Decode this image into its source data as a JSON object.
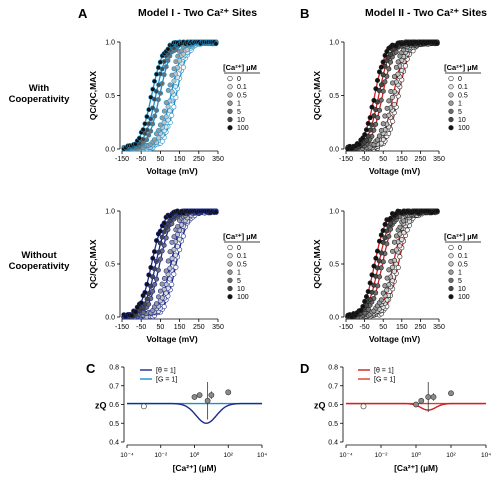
{
  "panel_letters": {
    "a": "A",
    "b": "B",
    "c": "C",
    "d": "D"
  },
  "model_titles": {
    "model1": "Model I - Two Ca²⁺ Sites",
    "model2": "Model II - Two Ca²⁺ Sites"
  },
  "row_labels": {
    "with": [
      "With",
      "Cooperativity"
    ],
    "without": [
      "Without",
      "Cooperativity"
    ]
  },
  "colors": {
    "model1_with": "#1f8fc9",
    "model1_without": "#1c2a8a",
    "model2": "#d02020",
    "model2_bottom": "#e23a2a",
    "data_dark": "#222222"
  },
  "chart_data": [
    {
      "id": "A-top",
      "type": "scatter",
      "xlabel": "Voltage (mV)",
      "ylabel": "QC/QC,MAX",
      "xlim": [
        -150,
        350
      ],
      "ylim": [
        0,
        1.0
      ],
      "xticks": [
        "-150",
        "-50",
        "50",
        "150",
        "250",
        "350"
      ],
      "yticks": [
        "0.0",
        "0.5",
        "1.0"
      ],
      "legend_title": "[Ca²⁺] µM",
      "legend": [
        "0",
        "0.1",
        "0.5",
        "1",
        "5",
        "10",
        "100"
      ],
      "v_half": [
        132,
        118,
        104,
        86,
        46,
        26,
        4
      ],
      "slope": 30,
      "model": "Model I",
      "condition": "With Cooperativity"
    },
    {
      "id": "B-top",
      "type": "scatter",
      "xlabel": "Voltage (mV)",
      "ylabel": "QC/QC,MAX",
      "xlim": [
        -150,
        350
      ],
      "ylim": [
        0,
        1.0
      ],
      "xticks": [
        "-150",
        "-50",
        "50",
        "150",
        "250",
        "350"
      ],
      "yticks": [
        "0.0",
        "0.5",
        "1.0"
      ],
      "legend_title": "[Ca²⁺] µM",
      "legend": [
        "0",
        "0.1",
        "0.5",
        "1",
        "5",
        "10",
        "100"
      ],
      "v_half": [
        132,
        118,
        104,
        86,
        46,
        26,
        4
      ],
      "slope": 30,
      "model": "Model II",
      "condition": "With Cooperativity"
    },
    {
      "id": "A-bottom",
      "type": "scatter",
      "xlabel": "Voltage (mV)",
      "ylabel": "QC/QC,MAX",
      "xlim": [
        -150,
        350
      ],
      "ylim": [
        0,
        1.0
      ],
      "xticks": [
        "-150",
        "-50",
        "50",
        "150",
        "250",
        "350"
      ],
      "yticks": [
        "0.0",
        "0.5",
        "1.0"
      ],
      "legend_title": "[Ca²⁺] µM",
      "legend": [
        "0",
        "0.1",
        "0.5",
        "1",
        "5",
        "10",
        "100"
      ],
      "v_half": [
        132,
        118,
        104,
        86,
        46,
        26,
        4
      ],
      "slope": 30,
      "model": "Model I",
      "condition": "Without Cooperativity"
    },
    {
      "id": "B-bottom",
      "type": "scatter",
      "xlabel": "Voltage (mV)",
      "ylabel": "QC/QC,MAX",
      "xlim": [
        -150,
        350
      ],
      "ylim": [
        0,
        1.0
      ],
      "xticks": [
        "-150",
        "-50",
        "50",
        "150",
        "250",
        "350"
      ],
      "yticks": [
        "0.0",
        "0.5",
        "1.0"
      ],
      "legend_title": "[Ca²⁺] µM",
      "legend": [
        "0",
        "0.1",
        "0.5",
        "1",
        "5",
        "10",
        "100"
      ],
      "v_half": [
        132,
        118,
        104,
        86,
        46,
        26,
        4
      ],
      "slope": 30,
      "model": "Model II",
      "condition": "Without Cooperativity"
    },
    {
      "id": "C",
      "type": "line",
      "xlabel": "[Ca²⁺] (µM)",
      "ylabel": "zQ",
      "xscale": "log",
      "xlim": [
        0.0001,
        10000
      ],
      "ylim": [
        0.4,
        0.8
      ],
      "xticks": [
        "10⁻⁴",
        "10⁻²",
        "10⁰",
        "10²",
        "10⁴"
      ],
      "yticks": [
        "0.4",
        "0.5",
        "0.6",
        "0.7",
        "0.8"
      ],
      "legend": [
        "[θ = 1]",
        "[G = 1]"
      ],
      "curve": {
        "baseline": 0.605,
        "minimum": 0.5,
        "min_at": 5,
        "width_decades": 0.85
      },
      "points": [
        {
          "x": 0.001,
          "y": 0.59,
          "err": 0,
          "style": "open"
        },
        {
          "x": 1,
          "y": 0.64,
          "err": 0.01,
          "style": "gray"
        },
        {
          "x": 2,
          "y": 0.65,
          "err": 0.01,
          "style": "gray"
        },
        {
          "x": 6,
          "y": 0.62,
          "err": 0.1,
          "style": "gray"
        },
        {
          "x": 10,
          "y": 0.65,
          "err": 0.02,
          "style": "gray"
        },
        {
          "x": 100,
          "y": 0.665,
          "err": 0,
          "style": "gray"
        }
      ]
    },
    {
      "id": "D",
      "type": "line",
      "xlabel": "[Ca²⁺] (µM)",
      "ylabel": "zQ",
      "xscale": "log",
      "xlim": [
        0.0001,
        10000
      ],
      "ylim": [
        0.4,
        0.8
      ],
      "xticks": [
        "10⁻⁴",
        "10⁻²",
        "10⁰",
        "10²",
        "10⁴"
      ],
      "yticks": [
        "0.4",
        "0.5",
        "0.6",
        "0.7",
        "0.8"
      ],
      "legend": [
        "[θ = 1]",
        "[G = 1]"
      ],
      "curve": {
        "baseline": 0.605,
        "minimum": 0.57,
        "min_at": 5,
        "width_decades": 0.6
      },
      "points": [
        {
          "x": 0.001,
          "y": 0.59,
          "err": 0,
          "style": "open"
        },
        {
          "x": 1,
          "y": 0.6,
          "err": 0.01,
          "style": "gray"
        },
        {
          "x": 2,
          "y": 0.62,
          "err": 0.01,
          "style": "gray"
        },
        {
          "x": 5,
          "y": 0.64,
          "err": 0.08,
          "style": "gray"
        },
        {
          "x": 10,
          "y": 0.64,
          "err": 0.02,
          "style": "gray"
        },
        {
          "x": 100,
          "y": 0.66,
          "err": 0,
          "style": "gray"
        }
      ]
    }
  ]
}
